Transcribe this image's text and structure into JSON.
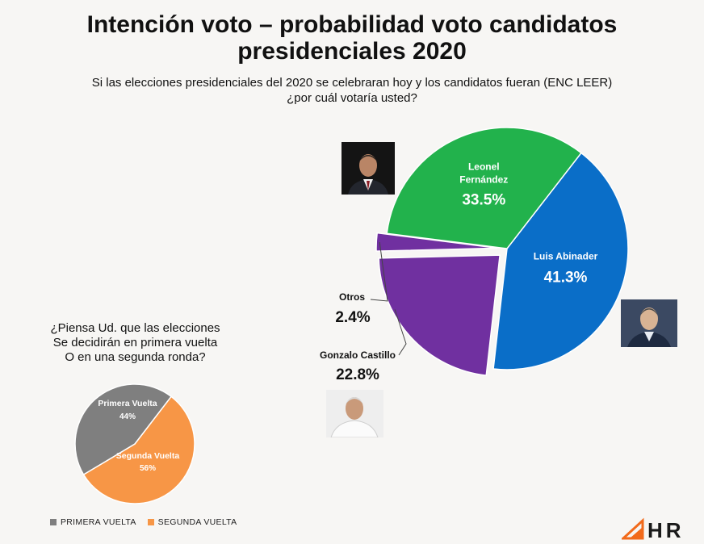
{
  "title": "Intención voto – probabilidad voto candidatos presidenciales 2020",
  "subtitle_line1": "Si las elecciones presidenciales del 2020 se celebraran hoy y los candidatos fueran (ENC LEER)",
  "subtitle_line2": "¿por cuál votaría usted?",
  "question_lines": [
    "¿Piensa Ud. que las elecciones",
    "Se decidirán en primera vuelta",
    "O en una segunda ronda?"
  ],
  "logo_text": "HR",
  "chart_data": [
    {
      "type": "pie",
      "title": "Intención voto – probabilidad voto candidatos presidenciales 2020",
      "slices": [
        {
          "label": "Luis Abinader",
          "value": 41.3,
          "value_label": "41.3%",
          "color": "#0a6ec8"
        },
        {
          "label": "Gonzalo Castillo",
          "value": 22.8,
          "value_label": "22.8%",
          "color": "#7030a0"
        },
        {
          "label": "Otros",
          "value": 2.4,
          "value_label": "2.4%",
          "color": "#1a2d7a"
        },
        {
          "label": "Leonel Fernández",
          "value": 33.5,
          "value_label": "33.5%",
          "color": "#22b24c"
        }
      ],
      "exploded": "Gonzalo Castillo, Otros"
    },
    {
      "type": "pie",
      "title": "¿Piensa Ud. que las elecciones Se decidirán en primera vuelta O en una segunda ronda?",
      "slices": [
        {
          "label": "Primera Vuelta",
          "value": 44,
          "value_label": "44%",
          "color": "#7f7f7f"
        },
        {
          "label": "Segunda Vuelta",
          "value": 56,
          "value_label": "56%",
          "color": "#f79646"
        }
      ],
      "legend": [
        "PRIMERA VUELTA",
        "SEGUNDA VUELTA"
      ],
      "legend_position": "bottom"
    }
  ]
}
